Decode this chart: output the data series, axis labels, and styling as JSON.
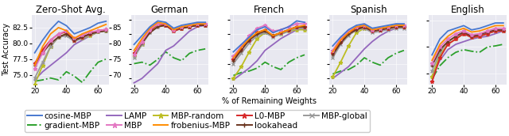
{
  "x_vals": [
    20,
    25,
    30,
    35,
    40,
    45,
    50,
    55,
    60,
    65
  ],
  "panels": [
    {
      "title": "Zero-Shot Avg.",
      "ylim": [
        73.5,
        84.5
      ],
      "yticks": [
        75.0,
        77.5,
        80.0,
        82.5
      ],
      "show_ylabel": true,
      "series": {
        "cosine-MBP": [
          78.5,
          80.5,
          82.2,
          83.5,
          82.8,
          81.5,
          82.0,
          82.5,
          83.2,
          83.5
        ],
        "frobenius-MBP": [
          76.5,
          79.5,
          81.5,
          82.5,
          82.0,
          80.8,
          81.5,
          82.0,
          82.5,
          83.0
        ],
        "gradient-MBP": [
          74.0,
          74.2,
          74.5,
          74.2,
          75.5,
          74.8,
          73.8,
          75.5,
          77.0,
          77.5
        ],
        "L0-MBP": [
          76.8,
          79.0,
          80.5,
          81.5,
          81.8,
          80.5,
          81.0,
          81.5,
          82.0,
          82.2
        ],
        "LAMP": [
          74.2,
          75.5,
          76.5,
          77.5,
          78.5,
          79.8,
          80.5,
          81.2,
          81.8,
          82.0
        ],
        "lookahead": [
          76.5,
          78.5,
          80.0,
          81.0,
          81.5,
          80.5,
          81.0,
          81.5,
          81.8,
          82.0
        ],
        "MBP": [
          76.0,
          78.5,
          80.5,
          81.5,
          82.0,
          80.8,
          81.3,
          81.8,
          82.0,
          82.2
        ],
        "MBP-global": [
          74.5,
          77.0,
          79.5,
          81.0,
          81.2,
          80.3,
          80.8,
          81.3,
          81.8,
          82.0
        ],
        "MBP-random": [
          73.5,
          76.5,
          79.5,
          81.0,
          81.5,
          80.5,
          80.8,
          81.2,
          81.8,
          82.0
        ]
      }
    },
    {
      "title": "German",
      "ylim": [
        63.0,
        86.5
      ],
      "yticks": [
        65,
        70,
        75,
        80,
        85
      ],
      "show_ylabel": false,
      "series": {
        "cosine-MBP": [
          76.5,
          79.5,
          82.5,
          84.5,
          84.0,
          82.0,
          83.0,
          83.5,
          84.0,
          84.0
        ],
        "frobenius-MBP": [
          74.5,
          78.5,
          82.0,
          84.0,
          83.5,
          81.5,
          82.5,
          83.0,
          83.5,
          83.5
        ],
        "gradient-MBP": [
          70.0,
          70.5,
          69.5,
          71.5,
          74.0,
          72.0,
          71.0,
          73.5,
          74.5,
          75.0
        ],
        "L0-MBP": [
          73.5,
          77.5,
          81.0,
          83.5,
          83.0,
          81.0,
          82.0,
          82.5,
          83.0,
          83.0
        ],
        "LAMP": [
          63.5,
          65.0,
          67.5,
          70.0,
          74.5,
          76.0,
          78.5,
          81.0,
          82.5,
          83.0
        ],
        "lookahead": [
          73.0,
          77.0,
          80.5,
          82.5,
          83.0,
          81.5,
          82.0,
          82.5,
          83.0,
          83.0
        ],
        "MBP": [
          73.0,
          77.5,
          81.5,
          83.5,
          83.5,
          81.5,
          82.5,
          83.0,
          83.5,
          83.5
        ],
        "MBP-global": [
          72.0,
          76.5,
          80.5,
          82.5,
          83.0,
          81.0,
          82.0,
          82.5,
          83.0,
          83.0
        ],
        "MBP-random": [
          72.5,
          76.5,
          81.0,
          83.0,
          83.0,
          81.0,
          82.0,
          82.5,
          83.0,
          83.0
        ]
      }
    },
    {
      "title": "French",
      "ylim": [
        63.0,
        86.5
      ],
      "yticks": [
        65,
        70,
        75,
        80,
        85
      ],
      "show_ylabel": false,
      "series": {
        "cosine-MBP": [
          74.0,
          76.5,
          79.0,
          81.5,
          82.5,
          80.5,
          81.5,
          82.5,
          84.5,
          84.0
        ],
        "frobenius-MBP": [
          72.0,
          75.5,
          78.5,
          80.5,
          81.5,
          79.5,
          80.5,
          81.5,
          82.5,
          83.0
        ],
        "gradient-MBP": [
          66.0,
          67.0,
          67.5,
          68.5,
          70.5,
          69.0,
          68.0,
          70.5,
          72.0,
          73.0
        ],
        "L0-MBP": [
          71.5,
          75.0,
          78.0,
          80.5,
          81.5,
          79.5,
          80.5,
          81.5,
          82.5,
          82.5
        ],
        "LAMP": [
          64.5,
          66.5,
          68.5,
          71.0,
          74.5,
          76.5,
          78.5,
          80.0,
          81.5,
          82.0
        ],
        "lookahead": [
          71.0,
          74.5,
          78.0,
          80.0,
          81.0,
          79.5,
          80.5,
          81.5,
          82.5,
          82.5
        ],
        "MBP": [
          72.5,
          76.0,
          79.5,
          82.0,
          83.0,
          81.0,
          81.5,
          82.5,
          83.5,
          83.5
        ],
        "MBP-global": [
          70.0,
          73.5,
          77.0,
          79.5,
          80.5,
          79.0,
          80.0,
          81.0,
          82.0,
          82.0
        ],
        "MBP-random": [
          65.0,
          69.0,
          74.0,
          78.5,
          80.5,
          79.5,
          80.0,
          81.0,
          81.5,
          81.5
        ]
      }
    },
    {
      "title": "Spanish",
      "ylim": [
        63.0,
        86.5
      ],
      "yticks": [
        65,
        70,
        75,
        80,
        85
      ],
      "show_ylabel": false,
      "series": {
        "cosine-MBP": [
          76.0,
          79.0,
          81.5,
          83.0,
          83.5,
          82.0,
          82.5,
          83.0,
          83.5,
          83.5
        ],
        "frobenius-MBP": [
          74.0,
          78.0,
          80.5,
          82.5,
          83.0,
          81.5,
          82.0,
          82.5,
          83.0,
          83.0
        ],
        "gradient-MBP": [
          66.5,
          67.5,
          68.0,
          69.5,
          72.0,
          70.5,
          69.5,
          72.0,
          73.5,
          74.5
        ],
        "L0-MBP": [
          73.5,
          77.5,
          80.5,
          82.0,
          82.5,
          81.0,
          81.5,
          82.0,
          82.5,
          82.5
        ],
        "LAMP": [
          65.0,
          67.0,
          69.0,
          72.0,
          75.0,
          77.5,
          79.5,
          81.0,
          82.0,
          82.5
        ],
        "lookahead": [
          73.0,
          77.0,
          80.0,
          81.5,
          82.5,
          81.0,
          81.5,
          82.0,
          82.5,
          82.5
        ],
        "MBP": [
          74.5,
          78.5,
          81.0,
          82.5,
          83.0,
          81.5,
          82.0,
          82.5,
          83.0,
          83.0
        ],
        "MBP-global": [
          72.0,
          76.5,
          79.5,
          81.5,
          82.0,
          80.5,
          81.0,
          81.5,
          82.0,
          82.0
        ],
        "MBP-random": [
          65.5,
          70.5,
          76.0,
          80.5,
          82.0,
          81.0,
          81.5,
          82.0,
          82.5,
          82.5
        ]
      }
    },
    {
      "title": "English",
      "ylim": [
        83.0,
        96.0
      ],
      "yticks": [
        85,
        90,
        95
      ],
      "show_ylabel": false,
      "series": {
        "cosine-MBP": [
          88.5,
          91.5,
          93.0,
          93.5,
          94.0,
          93.2,
          93.5,
          94.0,
          94.5,
          94.5
        ],
        "frobenius-MBP": [
          87.5,
          90.5,
          92.0,
          93.0,
          93.5,
          92.8,
          93.0,
          93.5,
          94.0,
          94.0
        ],
        "gradient-MBP": [
          84.0,
          86.5,
          88.0,
          89.0,
          89.5,
          89.2,
          89.0,
          90.0,
          90.2,
          90.5
        ],
        "L0-MBP": [
          83.5,
          88.0,
          90.5,
          91.5,
          92.5,
          91.8,
          92.0,
          92.5,
          93.0,
          93.0
        ],
        "LAMP": [
          84.5,
          87.5,
          89.5,
          90.5,
          91.0,
          91.5,
          91.8,
          92.0,
          92.5,
          93.0
        ],
        "lookahead": [
          86.5,
          89.5,
          91.0,
          92.0,
          92.8,
          92.0,
          92.3,
          92.8,
          93.2,
          93.2
        ],
        "MBP": [
          87.0,
          90.0,
          91.5,
          92.5,
          93.0,
          92.3,
          92.5,
          93.0,
          93.5,
          93.5
        ],
        "MBP-global": [
          85.5,
          89.0,
          91.0,
          92.0,
          92.5,
          91.8,
          92.0,
          92.5,
          93.0,
          93.0
        ],
        "MBP-random": [
          84.5,
          88.5,
          90.5,
          91.5,
          92.5,
          91.8,
          92.0,
          92.5,
          93.0,
          93.0
        ]
      }
    }
  ],
  "series_styles": {
    "cosine-MBP": {
      "color": "#4878cf",
      "linestyle": "-",
      "marker": null,
      "lw": 1.3
    },
    "frobenius-MBP": {
      "color": "#ff8c00",
      "linestyle": "-",
      "marker": null,
      "lw": 1.3
    },
    "gradient-MBP": {
      "color": "#2ca02c",
      "linestyle": "-.",
      "marker": null,
      "lw": 1.3
    },
    "L0-MBP": {
      "color": "#d62728",
      "linestyle": "-",
      "marker": "*",
      "lw": 1.3
    },
    "LAMP": {
      "color": "#9467bd",
      "linestyle": "-",
      "marker": null,
      "lw": 1.3
    },
    "lookahead": {
      "color": "#6b3520",
      "linestyle": "-",
      "marker": "+",
      "lw": 1.3
    },
    "MBP": {
      "color": "#e377c2",
      "linestyle": "-",
      "marker": "*",
      "lw": 1.3
    },
    "MBP-global": {
      "color": "#999999",
      "linestyle": "-",
      "marker": "x",
      "lw": 1.3
    },
    "MBP-random": {
      "color": "#bcbd22",
      "linestyle": "-",
      "marker": "*",
      "lw": 1.3
    }
  },
  "legend_row1": [
    "cosine-MBP",
    "gradient-MBP",
    "LAMP",
    "MBP",
    "MBP-random"
  ],
  "legend_row2": [
    "frobenius-MBP",
    "L0-MBP",
    "lookahead",
    "MBP-global"
  ],
  "xlabel": "% of Remaining Weights",
  "ylabel": "Test Accuracy",
  "bg_color": "#e8e8f0",
  "fig_bg": "#ffffff",
  "title_fontsize": 8.5,
  "tick_fontsize": 6.5,
  "label_fontsize": 7.0,
  "legend_fontsize": 7.5
}
